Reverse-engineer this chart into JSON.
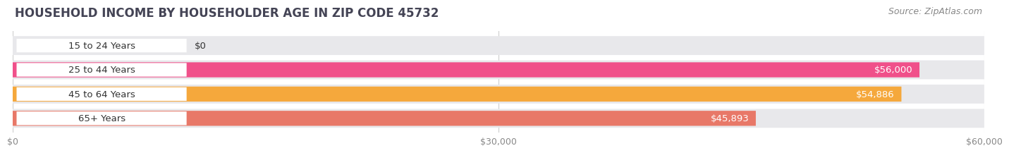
{
  "title": "HOUSEHOLD INCOME BY HOUSEHOLDER AGE IN ZIP CODE 45732",
  "source": "Source: ZipAtlas.com",
  "categories": [
    "15 to 24 Years",
    "25 to 44 Years",
    "45 to 64 Years",
    "65+ Years"
  ],
  "values": [
    0,
    56000,
    54886,
    45893
  ],
  "bar_colors": [
    "#a8aed8",
    "#f0508a",
    "#f5a83c",
    "#e87868"
  ],
  "bar_bg_color": "#e8e8eb",
  "background_color": "#ffffff",
  "xlim": [
    0,
    60000
  ],
  "xticks": [
    0,
    30000,
    60000
  ],
  "xtick_labels": [
    "$0",
    "$30,000",
    "$60,000"
  ],
  "value_labels": [
    "$0",
    "$56,000",
    "$54,886",
    "$45,893"
  ],
  "title_fontsize": 12,
  "source_fontsize": 9,
  "label_fontsize": 9.5,
  "tick_fontsize": 9,
  "title_color": "#444455",
  "source_color": "#888888",
  "label_color": "#333333",
  "tick_color": "#888888",
  "grid_color": "#cccccc"
}
